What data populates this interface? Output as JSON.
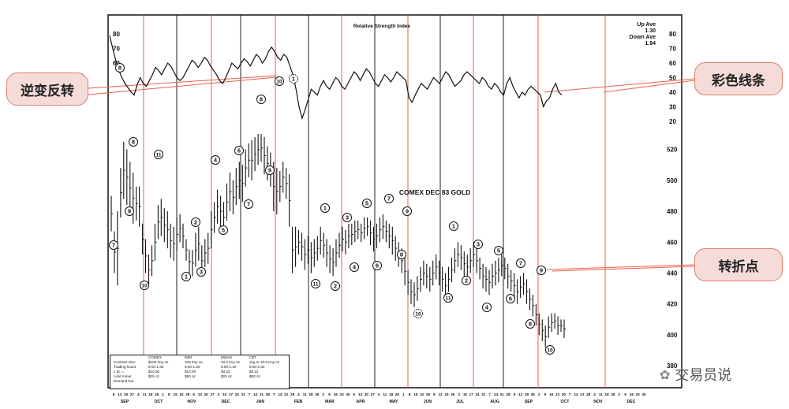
{
  "chart_data": {
    "type": "bar",
    "rsi_panel": {
      "title": "Relative Strength Index",
      "legend": [
        "Up Ave",
        "1.30",
        "Down Ave",
        "1.94"
      ],
      "tick_labels": [
        "80",
        "70",
        "60",
        "50",
        "40",
        "30",
        "20"
      ],
      "ylim": [
        15,
        85
      ],
      "left_labels": [
        "80",
        "70",
        "60"
      ],
      "values": [
        79,
        70,
        62,
        55,
        50,
        46,
        43,
        40,
        38,
        45,
        50,
        46,
        44,
        48,
        52,
        57,
        55,
        52,
        56,
        60,
        58,
        54,
        50,
        48,
        50,
        54,
        58,
        62,
        60,
        57,
        60,
        64,
        62,
        58,
        55,
        52,
        48,
        46,
        50,
        55,
        60,
        58,
        56,
        60,
        63,
        61,
        58,
        62,
        66,
        64,
        60,
        63,
        68,
        71,
        68,
        64,
        62,
        66,
        64,
        58,
        52,
        42,
        30,
        22,
        28,
        35,
        42,
        40,
        38,
        44,
        48,
        44,
        42,
        46,
        50,
        48,
        44,
        42,
        46,
        50,
        54,
        52,
        48,
        52,
        56,
        54,
        50,
        46,
        44,
        48,
        52,
        50,
        47,
        50,
        54,
        52,
        50,
        48,
        36,
        33,
        38,
        42,
        46,
        44,
        42,
        46,
        50,
        48,
        46,
        50,
        54,
        52,
        48,
        44,
        46,
        48,
        52,
        54,
        52,
        50,
        48,
        46,
        50,
        48,
        44,
        42,
        46,
        44,
        40,
        38,
        46,
        50,
        44,
        40,
        36,
        40,
        38,
        42,
        44,
        42,
        40,
        38,
        30,
        34,
        36,
        42,
        46,
        40,
        38
      ]
    },
    "price_panel": {
      "title": "COMEX DEC 83 GOLD",
      "tick_labels": [
        "520",
        "500",
        "480",
        "460",
        "440",
        "420",
        "400",
        "380"
      ],
      "ylim": [
        375,
        530
      ],
      "bars": [
        [
          467,
          490
        ],
        [
          440,
          467
        ],
        [
          432,
          480
        ],
        [
          476,
          508
        ],
        [
          488,
          525
        ],
        [
          484,
          520
        ],
        [
          478,
          512
        ],
        [
          472,
          505
        ],
        [
          474,
          496
        ],
        [
          470,
          496
        ],
        [
          452,
          472
        ],
        [
          440,
          462
        ],
        [
          432,
          452
        ],
        [
          438,
          458
        ],
        [
          448,
          472
        ],
        [
          462,
          484
        ],
        [
          464,
          488
        ],
        [
          460,
          482
        ],
        [
          456,
          480
        ],
        [
          450,
          472
        ],
        [
          448,
          470
        ],
        [
          454,
          476
        ],
        [
          460,
          478
        ],
        [
          456,
          472
        ],
        [
          448,
          462
        ],
        [
          440,
          455
        ],
        [
          438,
          455
        ],
        [
          444,
          466
        ],
        [
          448,
          470
        ],
        [
          438,
          458
        ],
        [
          444,
          462
        ],
        [
          446,
          466
        ],
        [
          456,
          480
        ],
        [
          466,
          486
        ],
        [
          472,
          494
        ],
        [
          470,
          490
        ],
        [
          466,
          486
        ],
        [
          474,
          498
        ],
        [
          480,
          505
        ],
        [
          478,
          500
        ],
        [
          484,
          508
        ],
        [
          488,
          512
        ],
        [
          486,
          510
        ],
        [
          496,
          520
        ],
        [
          502,
          524
        ],
        [
          500,
          526
        ],
        [
          506,
          528
        ],
        [
          510,
          530
        ],
        [
          512,
          530
        ],
        [
          504,
          528
        ],
        [
          500,
          522
        ],
        [
          496,
          518
        ],
        [
          480,
          512
        ],
        [
          478,
          508
        ],
        [
          486,
          506
        ],
        [
          492,
          512
        ],
        [
          488,
          508
        ],
        [
          470,
          504
        ],
        [
          440,
          470
        ],
        [
          444,
          470
        ],
        [
          452,
          468
        ],
        [
          448,
          466
        ],
        [
          442,
          462
        ],
        [
          446,
          464
        ],
        [
          440,
          460
        ],
        [
          444,
          462
        ],
        [
          448,
          464
        ],
        [
          452,
          470
        ],
        [
          450,
          466
        ],
        [
          444,
          462
        ],
        [
          440,
          458
        ],
        [
          438,
          456
        ],
        [
          444,
          462
        ],
        [
          450,
          466
        ],
        [
          454,
          470
        ],
        [
          452,
          468
        ],
        [
          456,
          472
        ],
        [
          458,
          472
        ],
        [
          460,
          474
        ],
        [
          462,
          474
        ],
        [
          460,
          472
        ],
        [
          462,
          476
        ],
        [
          464,
          476
        ],
        [
          458,
          474
        ],
        [
          454,
          470
        ],
        [
          456,
          472
        ],
        [
          460,
          476
        ],
        [
          462,
          478
        ],
        [
          460,
          474
        ],
        [
          456,
          472
        ],
        [
          452,
          470
        ],
        [
          448,
          464
        ],
        [
          444,
          460
        ],
        [
          440,
          456
        ],
        [
          432,
          450
        ],
        [
          426,
          442
        ],
        [
          420,
          436
        ],
        [
          418,
          434
        ],
        [
          422,
          438
        ],
        [
          428,
          444
        ],
        [
          432,
          448
        ],
        [
          430,
          446
        ],
        [
          428,
          444
        ],
        [
          432,
          448
        ],
        [
          436,
          452
        ],
        [
          432,
          448
        ],
        [
          428,
          444
        ],
        [
          424,
          440
        ],
        [
          428,
          444
        ],
        [
          434,
          450
        ],
        [
          440,
          456
        ],
        [
          444,
          460
        ],
        [
          442,
          458
        ],
        [
          438,
          454
        ],
        [
          436,
          452
        ],
        [
          440,
          456
        ],
        [
          444,
          460
        ],
        [
          440,
          456
        ],
        [
          436,
          450
        ],
        [
          430,
          446
        ],
        [
          428,
          444
        ],
        [
          426,
          442
        ],
        [
          430,
          446
        ],
        [
          432,
          448
        ],
        [
          434,
          450
        ],
        [
          438,
          452
        ],
        [
          436,
          450
        ],
        [
          430,
          446
        ],
        [
          428,
          442
        ],
        [
          424,
          440
        ],
        [
          420,
          436
        ],
        [
          424,
          438
        ],
        [
          426,
          440
        ],
        [
          420,
          436
        ],
        [
          416,
          430
        ],
        [
          412,
          426
        ],
        [
          406,
          420
        ],
        [
          400,
          414
        ],
        [
          396,
          410
        ],
        [
          392,
          406
        ],
        [
          398,
          412
        ],
        [
          402,
          414
        ],
        [
          404,
          414
        ],
        [
          400,
          412
        ],
        [
          402,
          410
        ],
        [
          398,
          410
        ]
      ]
    },
    "x_day_labels": [
      "6",
      "13",
      "20",
      "27",
      "4",
      "11",
      "18",
      "25",
      "1",
      "8",
      "15",
      "22",
      "29",
      "6",
      "13",
      "20",
      "27",
      "3",
      "10",
      "17",
      "24",
      "31",
      "7",
      "14",
      "21",
      "28",
      "7",
      "14",
      "21",
      "28",
      "4",
      "11",
      "18",
      "25",
      "2",
      "9",
      "16",
      "23",
      "30",
      "6",
      "13",
      "20",
      "27",
      "4",
      "11",
      "18",
      "25",
      "1",
      "8",
      "15",
      "22",
      "29",
      "5",
      "12",
      "19",
      "26",
      "3",
      "10",
      "17",
      "24",
      "31",
      "7",
      "14",
      "21",
      "28",
      "5",
      "12",
      "19",
      "26",
      "2",
      "9",
      "16",
      "23",
      "30",
      "7",
      "14",
      "21",
      "28",
      "4",
      "11",
      "18",
      "25",
      "2",
      "9",
      "16",
      "23",
      "30"
    ],
    "x_month_labels": [
      "SEP",
      "OCT",
      "NOV",
      "DEC",
      "JAN",
      "FEB",
      "MAR",
      "APR",
      "MAY",
      "JUN",
      "JUL",
      "AUG",
      "SEP",
      "OCT",
      "NOV",
      "DEC"
    ],
    "wave_labels": [
      "7",
      "8",
      "9",
      "10",
      "11",
      "1",
      "2",
      "3",
      "4",
      "5",
      "6",
      "7",
      "8",
      "9",
      "10",
      "11",
      "1",
      "2",
      "3",
      "4",
      "5",
      "6",
      "7",
      "8",
      "9",
      "10",
      "11",
      "1",
      "2",
      "3",
      "4",
      "5",
      "6",
      "7",
      "8",
      "9",
      "10",
      "11",
      "1"
    ],
    "rsi_wave_labels": [
      "8",
      "11",
      "1"
    ]
  },
  "callouts": {
    "reversal": "逆变反转",
    "color_lines": "彩色线条",
    "turning_point": "转折点"
  },
  "contract_table": {
    "header": [
      "",
      "COMEX",
      "IMM",
      "MidAm",
      "CBT"
    ],
    "rows": [
      [
        "Contract size:",
        "$100 troy oz.",
        "100 troy oz.",
        "33.2 troy oz",
        "1kg or 32.5 troy oz"
      ],
      [
        "Trading hours:",
        "8:00-1:30",
        "8:00-1:30",
        "8:00-1:40",
        "8:00-1:30"
      ],
      [
        "1 pt. =",
        "$10.00",
        "$10.00",
        "$3.32",
        "$3.22"
      ],
      [
        "Limit move:",
        "$25 oz",
        "$50 oz",
        "$25 oz",
        "$50 oz"
      ],
      [
        "Demand bar",
        "",
        "",
        "",
        ""
      ]
    ]
  },
  "watermark": "交易员说",
  "colors": {
    "red_lines": "#e8604c",
    "callout_fill": "#f5dcd8",
    "callout_border": "#e07f72",
    "ink": "#111111"
  }
}
